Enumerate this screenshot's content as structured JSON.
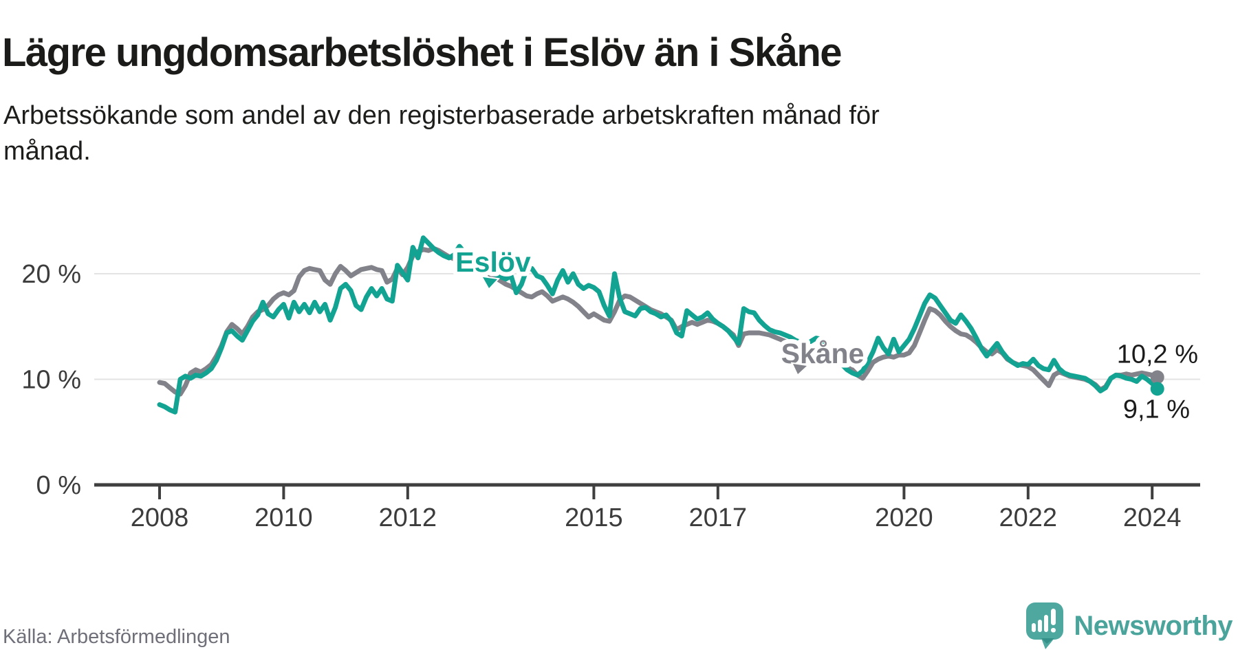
{
  "header": {
    "title": "Lägre ungdomsarbetslöshet i Eslöv än i Skåne",
    "subtitle_lines": [
      "Arbetssökande som andel av den registerbaserade arbetskraften månad för",
      "månad."
    ]
  },
  "source": {
    "label": "Källa: Arbetsförmedlingen"
  },
  "branding": {
    "name": "Newsworthy",
    "icon": "newsworthy-speech-bubble-chart-icon"
  },
  "colors": {
    "eslov_teal": "#12a392",
    "skane_gray": "#82828a",
    "axis_line": "#3f3f3f",
    "gridline": "#e3e3e3",
    "tick_text": "#3c3c3c",
    "end_label_text": "#1b1b1b",
    "logo_teal": "#4fa8a0"
  },
  "chart_data": {
    "type": "line",
    "title": "Lägre ungdomsarbetslöshet i Eslöv än i Skåne",
    "subtitle": "Arbetssökande som andel av den registerbaserade arbetskraften månad för månad.",
    "x_start": "2008-01",
    "x_end": "2024-02",
    "x_frequency": "monthly",
    "grid": "horizontal-only",
    "legend_position": "inline-labels",
    "ylim": [
      0,
      26
    ],
    "x_ticks": [
      2008,
      2010,
      2012,
      2015,
      2017,
      2020,
      2022,
      2024
    ],
    "y_ticks": [
      {
        "value": 0,
        "label": "0 %"
      },
      {
        "value": 10,
        "label": "10 %"
      },
      {
        "value": 20,
        "label": "20 %"
      }
    ],
    "series": [
      {
        "name": "Skåne",
        "color": "#82828a",
        "end_label": "10,2 %",
        "end_value": 10.2,
        "values": [
          9.7,
          9.6,
          9.2,
          8.8,
          8.6,
          9.4,
          10.6,
          10.9,
          10.7,
          11.0,
          11.4,
          12.2,
          13.2,
          14.5,
          15.2,
          14.8,
          14.3,
          15.0,
          15.9,
          16.4,
          16.6,
          17.0,
          17.6,
          18.0,
          18.2,
          18.0,
          18.4,
          19.7,
          20.3,
          20.5,
          20.4,
          20.3,
          19.4,
          19.0,
          20.0,
          20.7,
          20.3,
          19.8,
          20.1,
          20.4,
          20.5,
          20.6,
          20.4,
          20.3,
          19.2,
          19.5,
          20.5,
          19.9,
          20.6,
          21.7,
          22.1,
          22.3,
          22.2,
          22.4,
          22.2,
          21.9,
          21.6,
          21.4,
          21.7,
          21.5,
          21.3,
          20.9,
          20.6,
          20.2,
          19.9,
          19.6,
          19.3,
          19.0,
          18.8,
          18.5,
          18.2,
          17.9,
          17.8,
          18.1,
          18.3,
          17.9,
          17.4,
          17.6,
          17.8,
          17.6,
          17.3,
          16.9,
          16.4,
          15.9,
          16.2,
          15.9,
          15.6,
          15.5,
          16.4,
          17.5,
          17.9,
          17.8,
          17.5,
          17.2,
          16.9,
          16.6,
          16.4,
          16.2,
          15.9,
          15.6,
          14.7,
          15.0,
          15.2,
          15.4,
          15.2,
          15.4,
          15.6,
          15.5,
          15.3,
          15.0,
          14.6,
          14.2,
          13.2,
          14.3,
          14.4,
          14.4,
          14.4,
          14.3,
          14.2,
          14.0,
          13.8,
          13.6,
          13.4,
          13.2,
          13.0,
          12.8,
          12.6,
          12.4,
          12.2,
          12.0,
          11.8,
          11.7,
          11.6,
          11.4,
          10.9,
          10.4,
          10.1,
          10.8,
          11.6,
          11.9,
          12.1,
          12.2,
          12.1,
          12.3,
          12.3,
          12.5,
          13.2,
          14.4,
          15.6,
          16.7,
          16.5,
          16.1,
          15.5,
          15.0,
          14.6,
          14.3,
          14.2,
          13.9,
          13.5,
          13.0,
          12.6,
          12.4,
          12.8,
          12.5,
          11.9,
          11.6,
          11.4,
          11.3,
          11.2,
          10.9,
          10.4,
          9.9,
          9.4,
          10.4,
          10.7,
          10.5,
          10.3,
          10.2,
          10.1,
          10.0,
          9.8,
          9.5,
          9.0,
          9.3,
          10.1,
          10.4,
          10.4,
          10.5,
          10.4,
          10.5,
          10.6,
          10.5,
          10.4,
          10.2
        ]
      },
      {
        "name": "Eslöv",
        "color": "#12a392",
        "end_label": "9,1 %",
        "end_value": 9.1,
        "values": [
          7.6,
          7.4,
          7.1,
          6.9,
          10.0,
          10.3,
          10.1,
          10.4,
          10.3,
          10.6,
          11.0,
          11.8,
          13.0,
          14.4,
          14.6,
          14.1,
          13.7,
          14.6,
          15.5,
          16.1,
          17.3,
          16.2,
          15.9,
          16.6,
          17.1,
          15.8,
          17.3,
          16.4,
          17.1,
          16.3,
          17.3,
          16.4,
          17.1,
          15.6,
          16.8,
          18.6,
          19.0,
          18.4,
          17.0,
          16.6,
          17.8,
          18.6,
          17.9,
          18.6,
          17.6,
          17.4,
          20.8,
          20.1,
          19.4,
          22.5,
          21.5,
          23.4,
          22.9,
          22.4,
          22.0,
          21.7,
          21.5,
          21.8,
          22.6,
          22.0,
          21.9,
          21.4,
          21.0,
          20.6,
          20.2,
          19.9,
          19.7,
          19.5,
          19.8,
          18.2,
          19.0,
          20.4,
          20.5,
          19.8,
          19.6,
          18.9,
          18.1,
          19.4,
          20.3,
          19.2,
          20.0,
          19.0,
          18.6,
          18.9,
          18.7,
          18.3,
          17.0,
          16.0,
          20.0,
          17.7,
          16.4,
          16.2,
          16.0,
          16.7,
          16.8,
          16.4,
          16.2,
          15.9,
          16.1,
          15.5,
          14.4,
          14.1,
          16.5,
          16.1,
          15.7,
          15.9,
          16.3,
          15.7,
          15.3,
          15.0,
          14.6,
          14.0,
          13.4,
          16.7,
          16.4,
          16.3,
          15.6,
          15.1,
          14.7,
          14.5,
          14.4,
          14.2,
          14.0,
          13.7,
          13.5,
          13.3,
          13.6,
          13.9,
          13.8,
          13.2,
          12.6,
          12.0,
          11.4,
          10.9,
          10.6,
          10.4,
          10.8,
          11.6,
          12.6,
          13.9,
          13.0,
          12.4,
          13.8,
          12.6,
          13.2,
          13.8,
          14.8,
          16.0,
          17.2,
          18.0,
          17.7,
          17.0,
          16.3,
          15.6,
          15.3,
          16.1,
          15.5,
          14.8,
          13.9,
          12.9,
          12.2,
          12.8,
          13.4,
          12.6,
          12.0,
          11.6,
          11.3,
          11.5,
          11.4,
          11.9,
          11.3,
          11.0,
          10.9,
          11.8,
          11.0,
          10.6,
          10.4,
          10.3,
          10.2,
          10.1,
          9.8,
          9.4,
          8.9,
          9.2,
          10.1,
          10.4,
          10.3,
          10.1,
          10.0,
          9.8,
          10.3,
          10.0,
          9.6,
          9.1
        ]
      }
    ]
  }
}
